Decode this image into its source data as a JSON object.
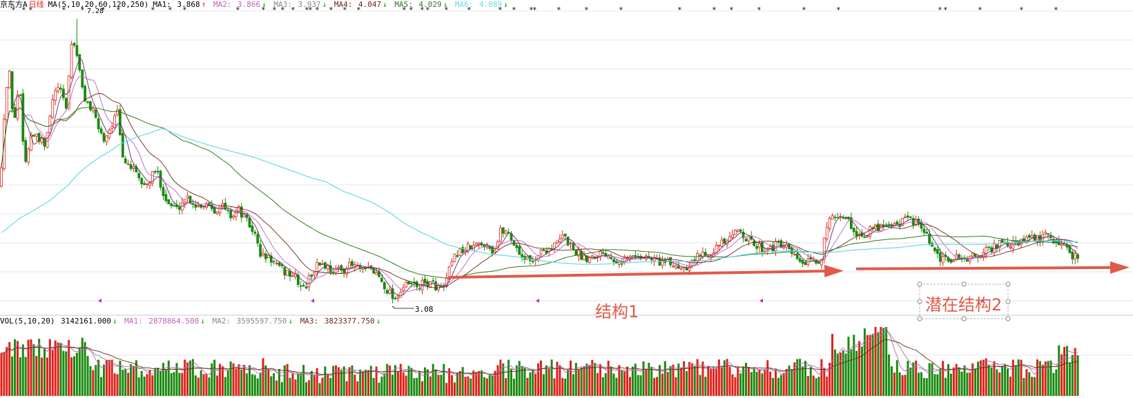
{
  "colors": {
    "up": "#e0201a",
    "down": "#1a8a10",
    "ma1": "#5a2d5a",
    "ma2": "#c060c0",
    "ma3": "#888888",
    "ma4": "#6a2a10",
    "ma5": "#2f7a1f",
    "ma6": "#66d9e8",
    "arrow": "#e05a4a",
    "grid": "#e6e6e6",
    "marker": "#c030c0"
  },
  "price_header": {
    "stock": "京东方A",
    "period": "日线",
    "ma_params": "MA(5,10,20,60,120,250)",
    "items": [
      {
        "label": "MA1:",
        "value": "3.868",
        "arrow": "↑"
      },
      {
        "label": "MA2:",
        "value": "3.866",
        "arrow": "↓"
      },
      {
        "label": "MA3:",
        "value": "3.937",
        "arrow": "↓"
      },
      {
        "label": "MA4:",
        "value": "4.047",
        "arrow": "↓"
      },
      {
        "label": "MA5:",
        "value": "4.029",
        "arrow": "↓"
      },
      {
        "label": "MA6:",
        "value": "4.089",
        "arrow": "↓"
      }
    ]
  },
  "volume_header": {
    "params": "VOL(5,10,20)",
    "value": "3142161.000",
    "value_arrow": "↓",
    "items": [
      {
        "label": "MA1:",
        "value": "2878864.500",
        "arrow": "↓"
      },
      {
        "label": "MA2:",
        "value": "3595597.750",
        "arrow": "↓"
      },
      {
        "label": "MA3:",
        "value": "3823377.750",
        "arrow": "↓"
      }
    ]
  },
  "annotations": {
    "low_label": "3.08",
    "high_label": "7.28",
    "structure1": "结构1",
    "structure2": "潜在结构2"
  },
  "chart_data": {
    "type": "candlestick",
    "title": "京东方A 日线",
    "bars": 400,
    "y_axis_visible": false,
    "price_lows_labelled": {
      "low": 3.08,
      "high": 7.28
    },
    "trend_anchor_prices": [
      3.14,
      3.42,
      3.52,
      3.55,
      3.57
    ],
    "series_names": [
      "MA1",
      "MA2",
      "MA3",
      "MA4",
      "MA5",
      "MA6"
    ],
    "volume_series_names": [
      "VOL",
      "MA1",
      "MA2",
      "MA3"
    ],
    "grid": true
  }
}
